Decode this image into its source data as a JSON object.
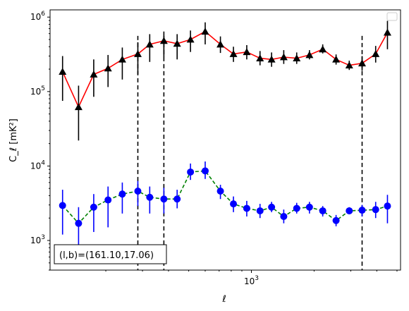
{
  "chart_data": {
    "type": "scatter",
    "x_scale": "log",
    "y_scale": "log",
    "xlim": [
      108,
      5200
    ],
    "ylim": [
      400,
      1250000
    ],
    "xlabel": "ℓ",
    "ylabel": "C_ℓ  [mK²]",
    "x_tick_labels": [
      {
        "value": 1000,
        "base": "10",
        "exp": "3"
      }
    ],
    "y_tick_labels": [
      {
        "value": 1000,
        "base": "10",
        "exp": "3"
      },
      {
        "value": 10000,
        "base": "10",
        "exp": "4"
      },
      {
        "value": 100000,
        "base": "10",
        "exp": "5"
      },
      {
        "value": 1000000,
        "base": "10",
        "exp": "6"
      }
    ],
    "annotation": "(l,b)=(161.10,17.06)",
    "legend": "top-right (empty)",
    "vertical_dashed_lines_x": [
      285,
      380,
      3400
    ],
    "vertical_dashed_lines_yrange": [
      400,
      560000
    ],
    "series": [
      {
        "marker": "triangle",
        "marker_color": "#000000",
        "line_color": "#ff0000",
        "line_style": "solid",
        "x": [
          124,
          148,
          175,
          205,
          240,
          285,
          325,
          380,
          440,
          510,
          600,
          710,
          820,
          950,
          1100,
          1250,
          1430,
          1650,
          1900,
          2200,
          2550,
          2950,
          3400,
          3950,
          4500
        ],
        "y": [
          185000,
          62000,
          170000,
          205000,
          270000,
          320000,
          430000,
          480000,
          440000,
          500000,
          640000,
          430000,
          320000,
          340000,
          280000,
          270000,
          290000,
          280000,
          310000,
          370000,
          270000,
          225000,
          240000,
          320000,
          620000
        ],
        "yerr_low": [
          75000,
          22000,
          85000,
          115000,
          145000,
          170000,
          250000,
          290000,
          270000,
          340000,
          430000,
          330000,
          250000,
          270000,
          225000,
          215000,
          235000,
          235000,
          270000,
          325000,
          230000,
          195000,
          190000,
          245000,
          370000
        ],
        "yerr_high": [
          300000,
          120000,
          270000,
          310000,
          390000,
          460000,
          590000,
          640000,
          590000,
          660000,
          850000,
          550000,
          400000,
          420000,
          350000,
          335000,
          360000,
          335000,
          360000,
          430000,
          315000,
          260000,
          300000,
          410000,
          890000
        ]
      },
      {
        "marker": "circle",
        "marker_color": "#0000ff",
        "line_color": "#008000",
        "line_style": "dashed",
        "x": [
          124,
          148,
          175,
          205,
          240,
          285,
          325,
          380,
          440,
          510,
          600,
          710,
          820,
          950,
          1100,
          1250,
          1430,
          1650,
          1900,
          2200,
          2550,
          2950,
          3400,
          3950,
          4500
        ],
        "y": [
          2950,
          1700,
          2800,
          3500,
          4200,
          4600,
          3800,
          3600,
          3600,
          8300,
          8600,
          4600,
          3100,
          2700,
          2500,
          2800,
          2100,
          2700,
          2800,
          2500,
          1850,
          2500,
          2550,
          2600,
          2900
        ],
        "yerr_low": [
          1200,
          800,
          1300,
          1500,
          2300,
          2900,
          2300,
          2300,
          2700,
          6500,
          6700,
          3600,
          2400,
          2100,
          2000,
          2400,
          1700,
          2300,
          2300,
          2100,
          1550,
          2300,
          2100,
          2000,
          1700
        ],
        "yerr_high": [
          4800,
          2800,
          4200,
          5300,
          6000,
          6300,
          5300,
          5100,
          4800,
          10800,
          11500,
          5600,
          3900,
          3400,
          3100,
          3300,
          2600,
          3200,
          3300,
          2900,
          2200,
          2800,
          3000,
          3300,
          4100
        ]
      }
    ]
  }
}
